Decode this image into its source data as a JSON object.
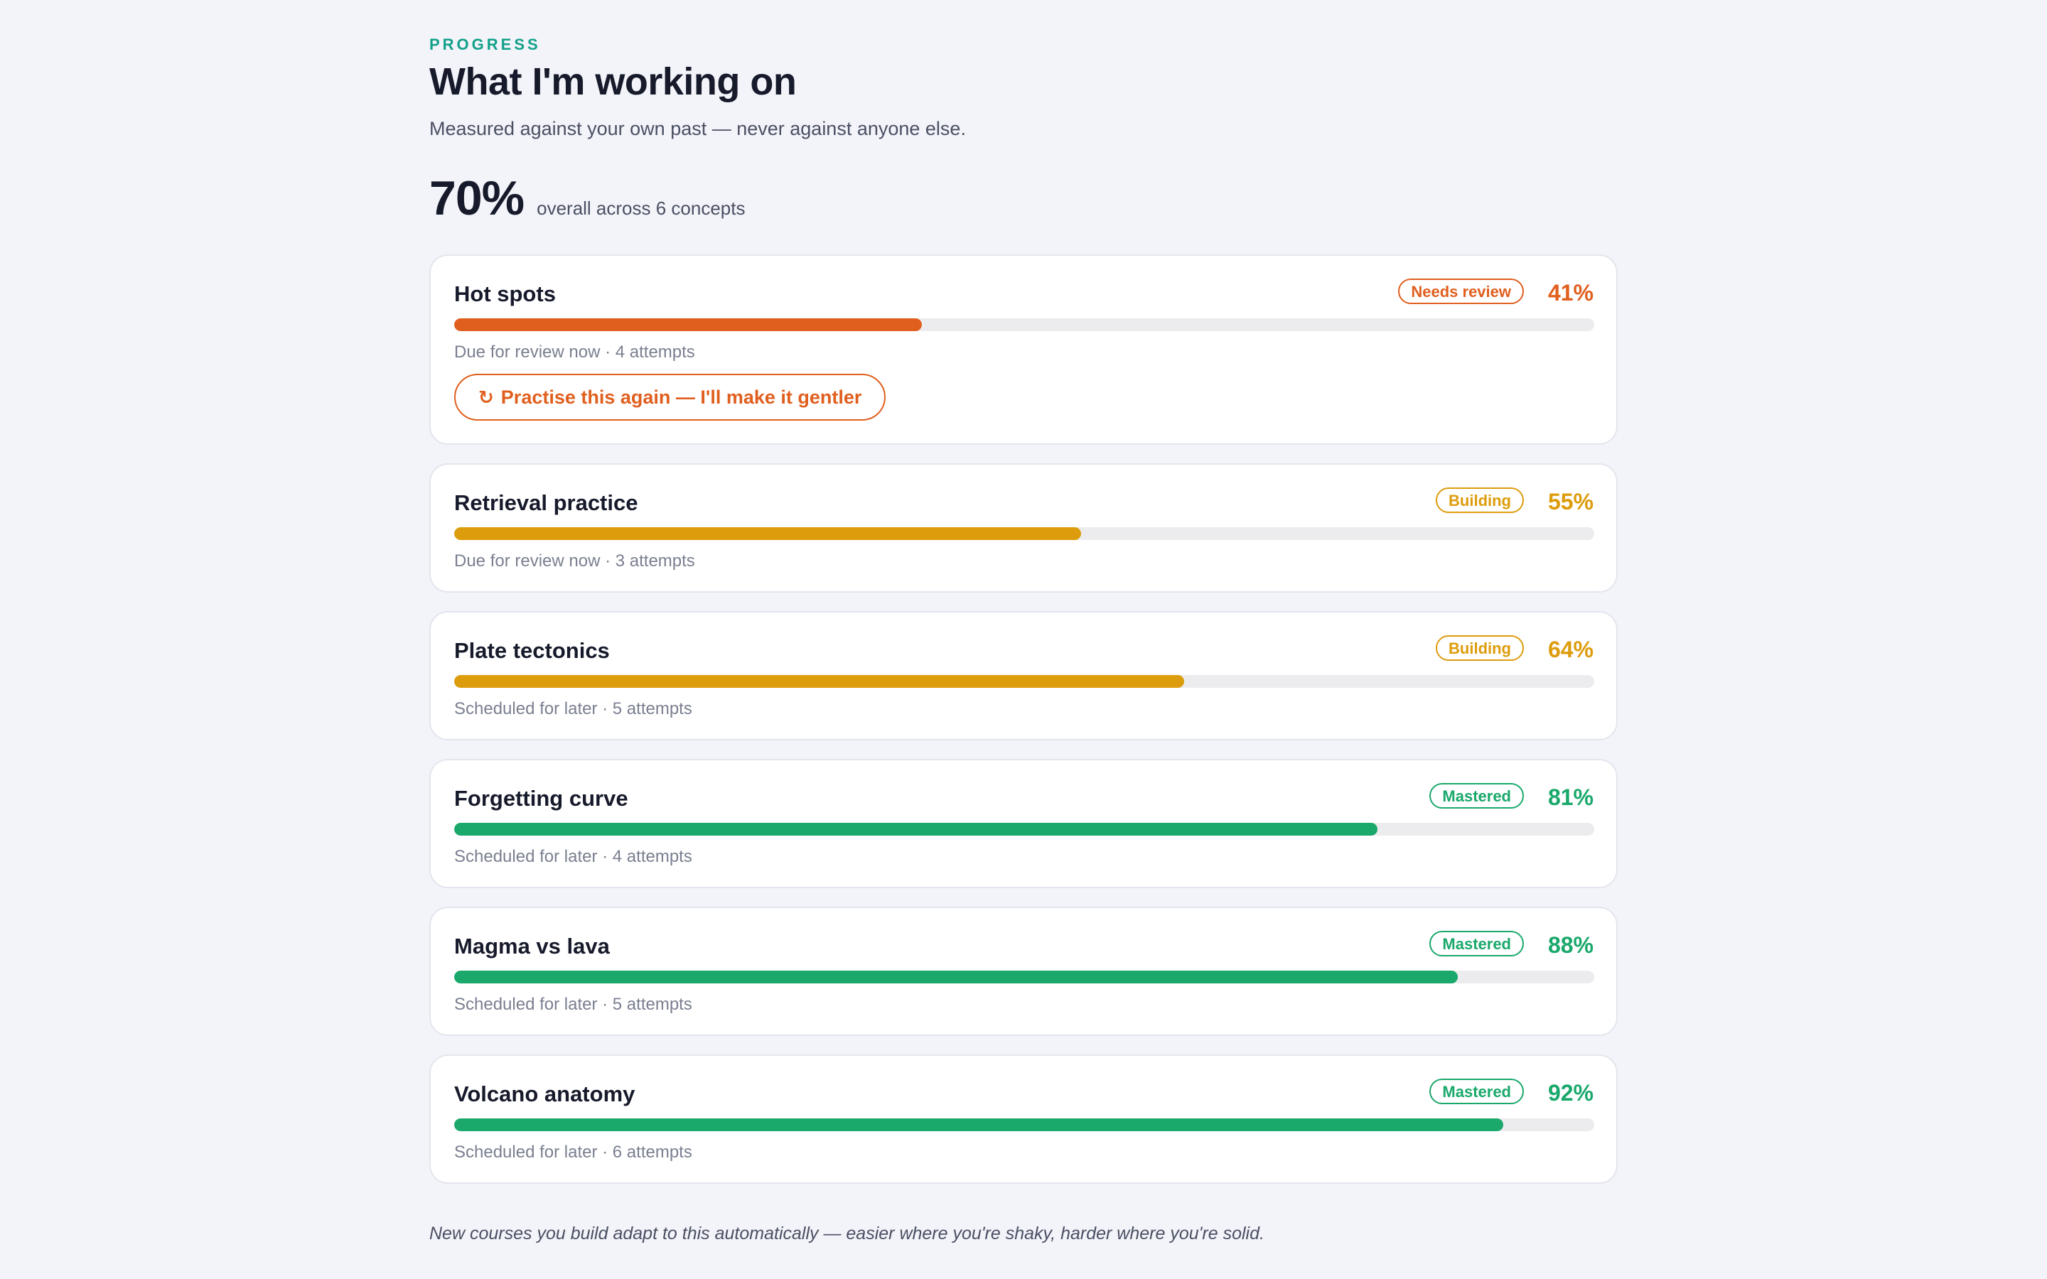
{
  "header": {
    "eyebrow": "PROGRESS",
    "title": "What I'm working on",
    "subtitle": "Measured against your own past — never against anyone else."
  },
  "overall": {
    "value": "70%",
    "description": "overall across 6 concepts"
  },
  "concepts": [
    {
      "name": "Hot spots",
      "badge": "Needs review",
      "percent_label": "41%",
      "progress": 0.41,
      "meta": "Due for review now · 4 attempts",
      "color": "#e05f1e",
      "action": {
        "icon": "refresh-icon",
        "glyph": "↻",
        "label": "Practise this again — I'll make it gentler"
      }
    },
    {
      "name": "Retrieval practice",
      "badge": "Building",
      "percent_label": "55%",
      "progress": 0.55,
      "meta": "Due for review now · 3 attempts",
      "color": "#dd9c0c"
    },
    {
      "name": "Plate tectonics",
      "badge": "Building",
      "percent_label": "64%",
      "progress": 0.64,
      "meta": "Scheduled for later · 5 attempts",
      "color": "#dd9c0c"
    },
    {
      "name": "Forgetting curve",
      "badge": "Mastered",
      "percent_label": "81%",
      "progress": 0.81,
      "meta": "Scheduled for later · 4 attempts",
      "color": "#1aa86b"
    },
    {
      "name": "Magma vs lava",
      "badge": "Mastered",
      "percent_label": "88%",
      "progress": 0.88,
      "meta": "Scheduled for later · 5 attempts",
      "color": "#1aa86b"
    },
    {
      "name": "Volcano anatomy",
      "badge": "Mastered",
      "percent_label": "92%",
      "progress": 0.92,
      "meta": "Scheduled for later · 6 attempts",
      "color": "#1aa86b"
    }
  ],
  "footnote": "New courses you build adapt to this automatically — easier where you're shaky, harder where you're solid."
}
